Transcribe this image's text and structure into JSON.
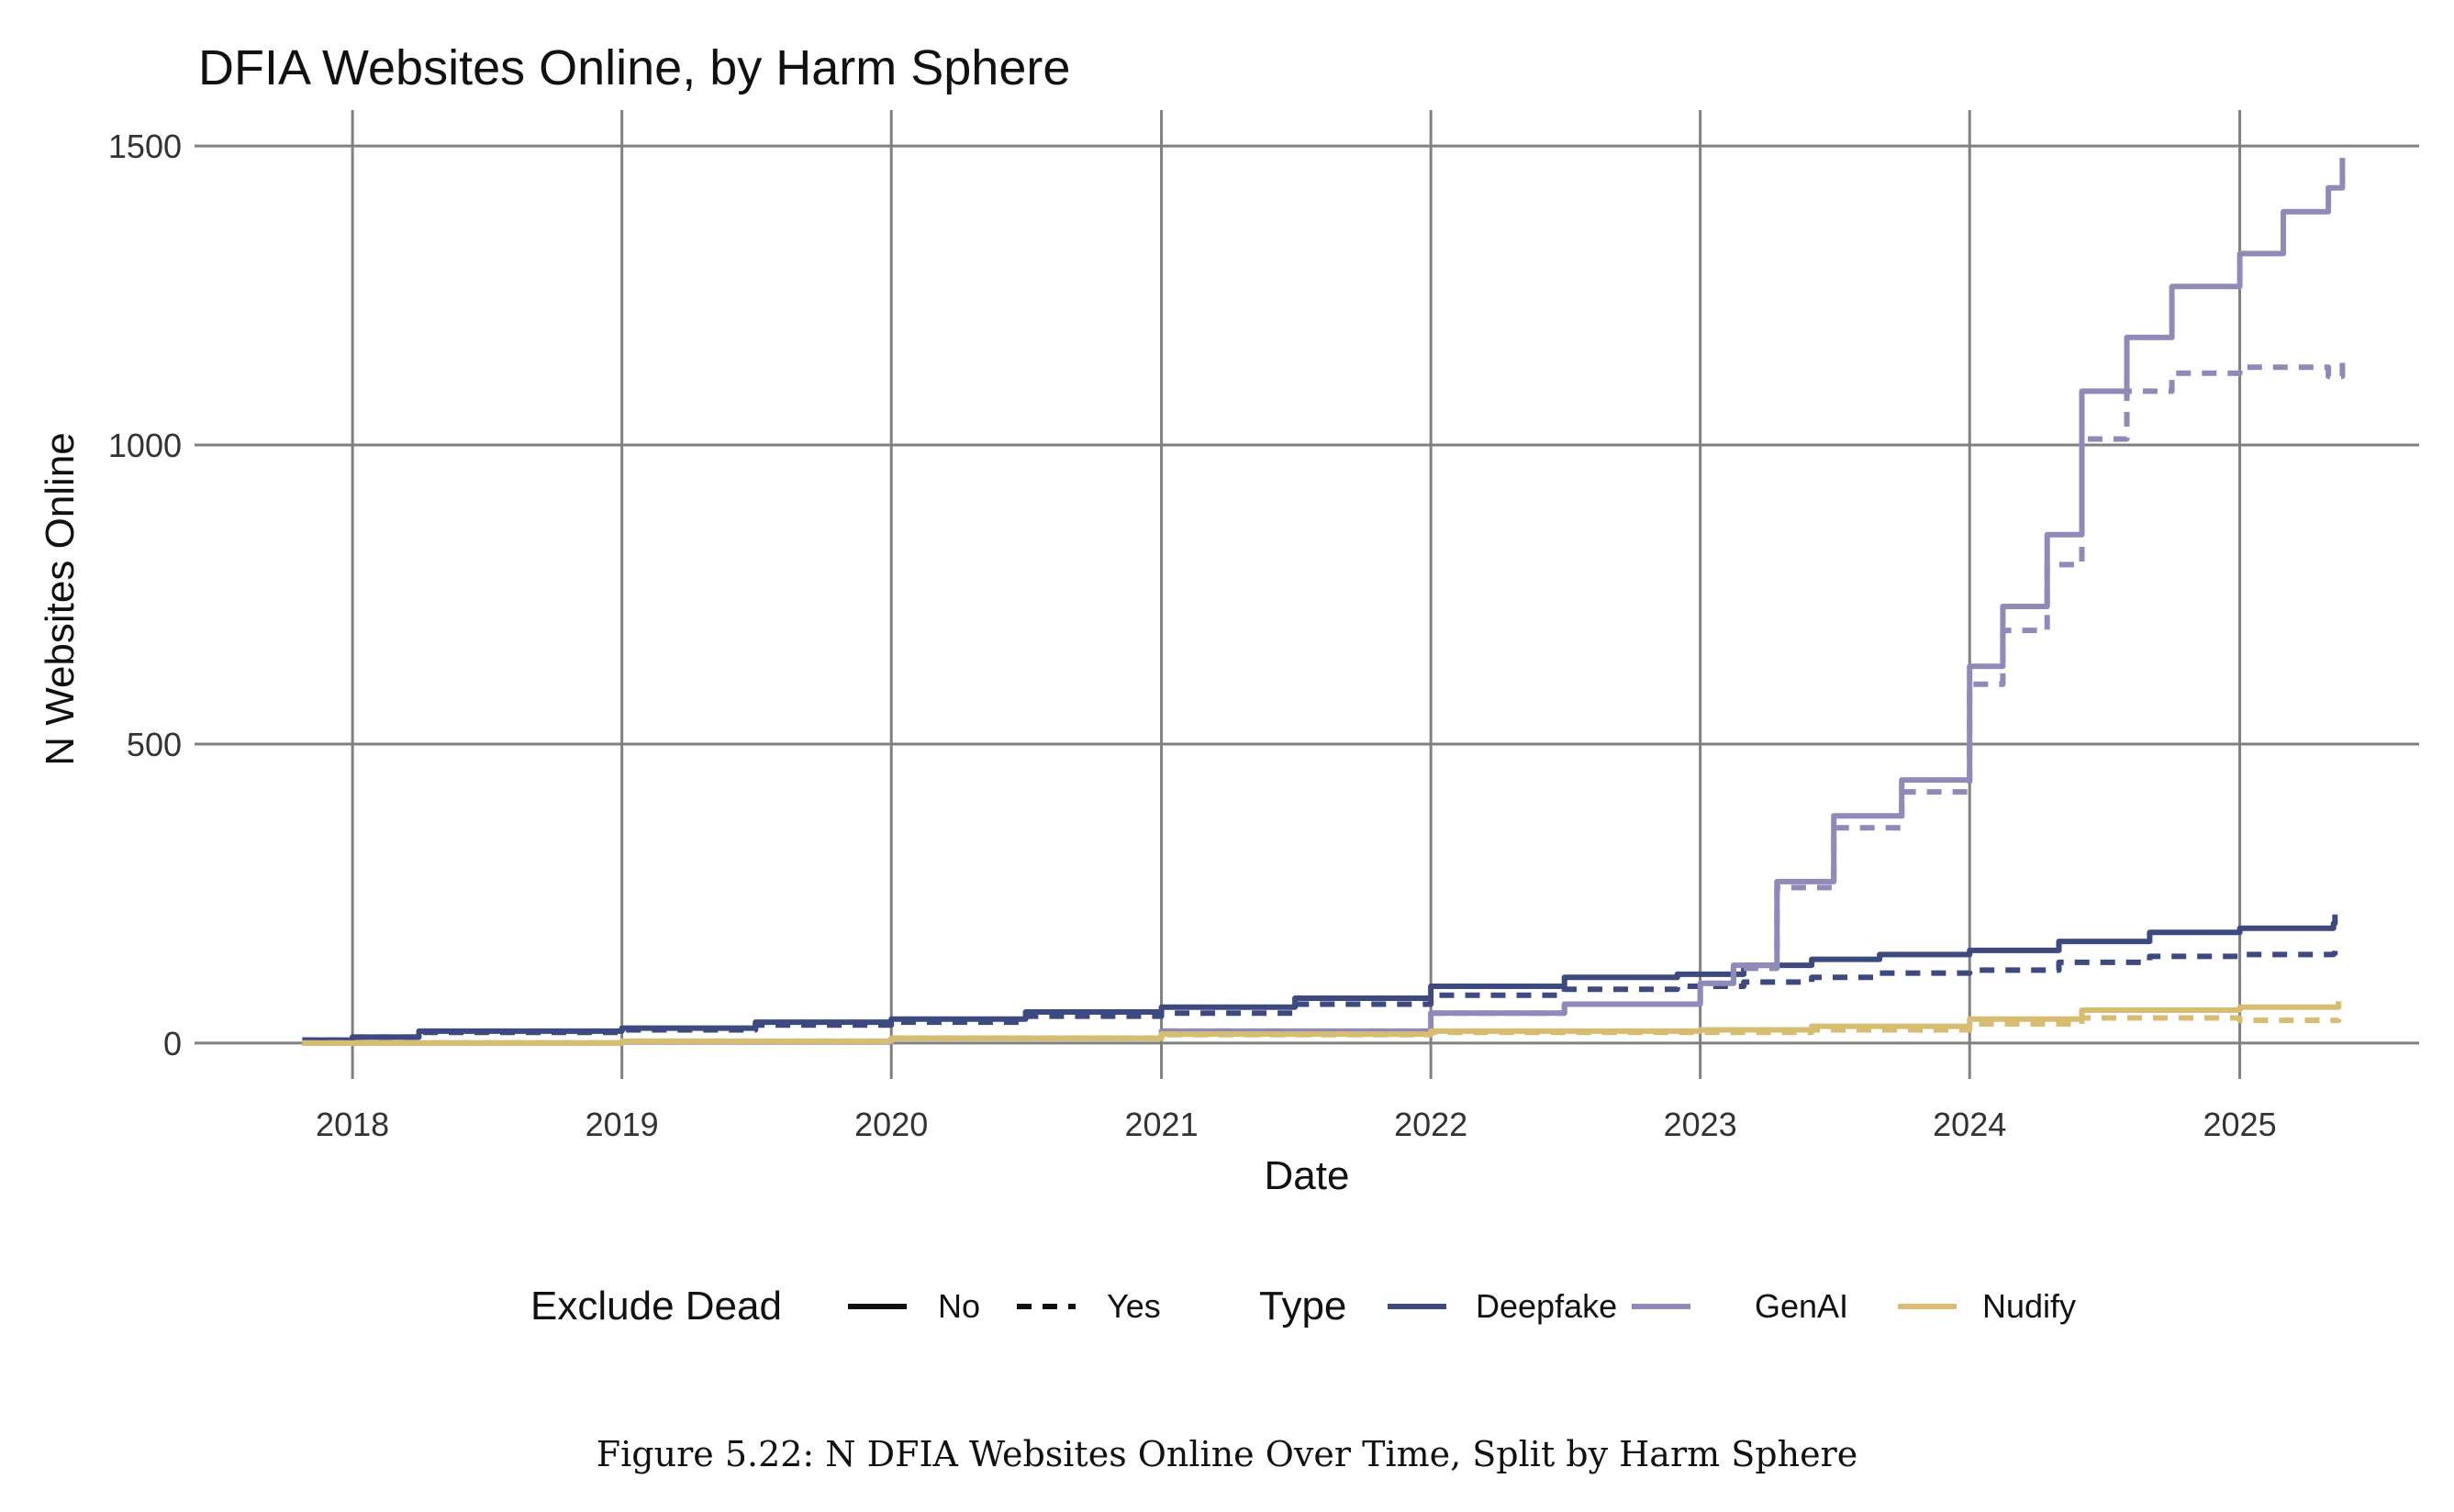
{
  "chart_data": {
    "type": "line",
    "title": "DFIA Websites Online, by Harm Sphere",
    "xlabel": "Date",
    "ylabel": "N Websites Online",
    "xlim": [
      "2017-06-01",
      "2025-09-01"
    ],
    "ylim": [
      -60,
      1560
    ],
    "x_ticks": [
      "2018",
      "2019",
      "2020",
      "2021",
      "2022",
      "2023",
      "2024",
      "2025"
    ],
    "y_ticks": [
      0,
      500,
      1000,
      1500
    ],
    "grid": true,
    "legend_position": "bottom",
    "legend": {
      "exclude_dead_title": "Exclude Dead",
      "exclude_dead_items": [
        "No",
        "Yes"
      ],
      "type_title": "Type",
      "type_items": [
        "Deepfake",
        "GenAI",
        "Nudify"
      ]
    },
    "colors": {
      "Deepfake": "#3d4a80",
      "GenAI": "#8f8ab8",
      "Nudify": "#d7bd71",
      "grid": "#808080"
    },
    "series": [
      {
        "name": "Deepfake",
        "exclude_dead": "No",
        "x": [
          "2017-10-25",
          "2018-01-01",
          "2018-04-01",
          "2019-01-01",
          "2019-07-01",
          "2020-01-01",
          "2020-07-01",
          "2021-01-01",
          "2021-07-01",
          "2022-01-01",
          "2022-07-01",
          "2022-12-01",
          "2023-03-01",
          "2023-06-01",
          "2023-09-01",
          "2024-01-01",
          "2024-05-01",
          "2024-09-01",
          "2025-01-01",
          "2025-05-08",
          "2025-05-10"
        ],
        "y": [
          5,
          10,
          20,
          25,
          35,
          40,
          52,
          60,
          75,
          95,
          110,
          115,
          130,
          140,
          148,
          155,
          170,
          185,
          192,
          200,
          215
        ]
      },
      {
        "name": "Deepfake",
        "exclude_dead": "Yes",
        "x": [
          "2017-10-25",
          "2018-01-01",
          "2018-04-01",
          "2019-01-01",
          "2019-07-01",
          "2020-01-01",
          "2020-07-01",
          "2021-01-01",
          "2021-07-01",
          "2022-01-01",
          "2022-07-01",
          "2022-12-01",
          "2023-03-01",
          "2023-06-01",
          "2023-09-01",
          "2024-01-01",
          "2024-05-01",
          "2024-09-01",
          "2025-01-01",
          "2025-05-08",
          "2025-05-10"
        ],
        "y": [
          5,
          10,
          18,
          22,
          30,
          35,
          45,
          50,
          65,
          80,
          90,
          95,
          102,
          110,
          117,
          122,
          135,
          145,
          148,
          150,
          165
        ]
      },
      {
        "name": "GenAI",
        "exclude_dead": "No",
        "x": [
          "2017-10-25",
          "2019-01-01",
          "2020-01-01",
          "2021-01-01",
          "2022-01-01",
          "2022-07-01",
          "2023-01-01",
          "2023-02-15",
          "2023-04-15",
          "2023-07-01",
          "2023-10-01",
          "2024-01-01",
          "2024-02-15",
          "2024-04-15",
          "2024-06-01",
          "2024-08-01",
          "2024-10-01",
          "2025-01-01",
          "2025-03-01",
          "2025-05-01",
          "2025-05-20"
        ],
        "y": [
          0,
          2,
          8,
          20,
          50,
          65,
          100,
          130,
          270,
          380,
          440,
          630,
          730,
          850,
          1090,
          1180,
          1265,
          1320,
          1390,
          1430,
          1480
        ]
      },
      {
        "name": "GenAI",
        "exclude_dead": "Yes",
        "x": [
          "2017-10-25",
          "2019-01-01",
          "2020-01-01",
          "2021-01-01",
          "2022-01-01",
          "2022-07-01",
          "2023-01-01",
          "2023-02-15",
          "2023-04-15",
          "2023-07-01",
          "2023-10-01",
          "2024-01-01",
          "2024-02-15",
          "2024-04-15",
          "2024-06-01",
          "2024-08-01",
          "2024-10-01",
          "2025-01-01",
          "2025-03-01",
          "2025-05-01",
          "2025-05-20"
        ],
        "y": [
          0,
          2,
          8,
          20,
          50,
          65,
          100,
          125,
          260,
          360,
          420,
          600,
          690,
          800,
          1010,
          1090,
          1120,
          1130,
          1130,
          1115,
          1155
        ]
      },
      {
        "name": "Nudify",
        "exclude_dead": "No",
        "x": [
          "2017-10-25",
          "2019-01-01",
          "2020-01-01",
          "2021-01-01",
          "2022-01-01",
          "2023-01-01",
          "2023-06-01",
          "2024-01-01",
          "2024-06-01",
          "2025-01-01",
          "2025-05-15"
        ],
        "y": [
          0,
          3,
          8,
          15,
          20,
          22,
          28,
          40,
          55,
          60,
          70
        ]
      },
      {
        "name": "Nudify",
        "exclude_dead": "Yes",
        "x": [
          "2017-10-25",
          "2019-01-01",
          "2020-01-01",
          "2021-01-01",
          "2022-01-01",
          "2023-01-01",
          "2023-06-01",
          "2024-01-01",
          "2024-06-01",
          "2025-01-01",
          "2025-05-15"
        ],
        "y": [
          0,
          3,
          8,
          14,
          18,
          18,
          22,
          32,
          42,
          38,
          40
        ]
      }
    ]
  },
  "caption": "Figure 5.22: N DFIA Websites Online Over Time, Split by Harm Sphere"
}
